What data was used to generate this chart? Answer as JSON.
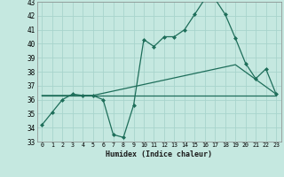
{
  "xlabel": "Humidex (Indice chaleur)",
  "xlim": [
    -0.5,
    23.5
  ],
  "ylim": [
    33,
    43
  ],
  "yticks": [
    33,
    34,
    35,
    36,
    37,
    38,
    39,
    40,
    41,
    42,
    43
  ],
  "xticks": [
    0,
    1,
    2,
    3,
    4,
    5,
    6,
    7,
    8,
    9,
    10,
    11,
    12,
    13,
    14,
    15,
    16,
    17,
    18,
    19,
    20,
    21,
    22,
    23
  ],
  "bg_color": "#c5e8e0",
  "grid_color": "#a8d4cc",
  "line_color": "#1e6e5a",
  "line1_x": [
    0,
    1,
    2,
    3,
    4,
    5,
    6,
    7,
    8,
    9,
    10,
    11,
    12,
    13,
    14,
    15,
    16,
    17,
    18,
    19,
    20,
    21,
    22,
    23
  ],
  "line1_y": [
    34.2,
    35.1,
    36.0,
    36.4,
    36.3,
    36.3,
    36.0,
    33.5,
    33.3,
    35.6,
    40.3,
    39.8,
    40.5,
    40.5,
    41.0,
    42.1,
    43.2,
    43.2,
    42.1,
    40.4,
    38.6,
    37.5,
    38.2,
    36.4
  ],
  "line2_x": [
    0,
    5,
    23
  ],
  "line2_y": [
    36.3,
    36.3,
    36.3
  ],
  "line3_x": [
    0,
    5,
    19,
    23
  ],
  "line3_y": [
    36.3,
    36.3,
    38.5,
    36.4
  ]
}
